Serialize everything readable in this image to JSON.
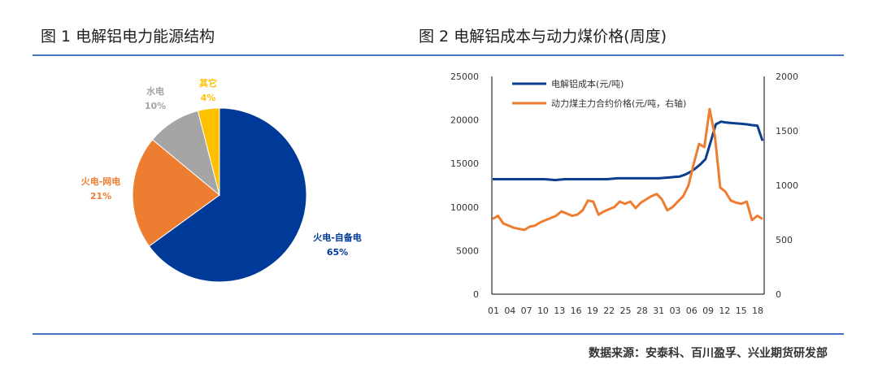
{
  "figure1_title": "图 1  电解铝电力能源结构",
  "figure2_title": "图 2  电解铝成本与动力煤价格(周度)",
  "source": "数据来源：安泰科、百川盈孚、兴业期货研发部",
  "chart_data": [
    {
      "type": "pie",
      "title": "",
      "slices": [
        {
          "label": "火电-自备电",
          "value": 65,
          "value_label": "65%",
          "color": "#003a99"
        },
        {
          "label": "火电-网电",
          "value": 21,
          "value_label": "21%",
          "color": "#ed7d31"
        },
        {
          "label": "水电",
          "value": 10,
          "value_label": "10%",
          "color": "#a5a5a5"
        },
        {
          "label": "其它",
          "value": 4,
          "value_label": "4%",
          "color": "#ffc000"
        }
      ]
    },
    {
      "type": "line",
      "title": "",
      "x_ticks": [
        "01",
        "04",
        "07",
        "10",
        "13",
        "16",
        "19",
        "22",
        "25",
        "28",
        "31",
        "03",
        "06",
        "09",
        "12",
        "15",
        "18"
      ],
      "y_left": {
        "ticks": [
          "0",
          "5000",
          "10000",
          "15000",
          "20000",
          "25000"
        ],
        "range": [
          0,
          25000
        ]
      },
      "y_right": {
        "ticks": [
          "0",
          "500",
          "1000",
          "1500",
          "2000"
        ],
        "range": [
          0,
          2000
        ]
      },
      "legend_position": "top-left",
      "series": [
        {
          "name": "电解铝成本(元/吨)",
          "axis": "left",
          "color": "#0b3d91",
          "values": [
            13200,
            13200,
            13200,
            13200,
            13200,
            13200,
            13200,
            13200,
            13200,
            13200,
            13200,
            13150,
            13100,
            13150,
            13200,
            13200,
            13200,
            13200,
            13200,
            13200,
            13200,
            13200,
            13200,
            13250,
            13300,
            13300,
            13300,
            13300,
            13300,
            13300,
            13300,
            13300,
            13300,
            13350,
            13400,
            13450,
            13500,
            13700,
            14000,
            14400,
            14900,
            15500,
            17500,
            19500,
            19800,
            19700,
            19650,
            19600,
            19550,
            19500,
            19400,
            19350,
            17600
          ]
        },
        {
          "name": "动力煤主力合约价格(元/吨，右轴)",
          "axis": "right",
          "color": "#ed7d31",
          "values": [
            690,
            720,
            650,
            630,
            610,
            600,
            590,
            620,
            630,
            660,
            680,
            700,
            720,
            760,
            740,
            720,
            730,
            770,
            860,
            850,
            730,
            760,
            780,
            800,
            850,
            830,
            850,
            790,
            840,
            870,
            900,
            920,
            870,
            770,
            800,
            850,
            900,
            1000,
            1200,
            1380,
            1350,
            1700,
            1450,
            980,
            940,
            860,
            840,
            830,
            850,
            680,
            720,
            690
          ]
        }
      ]
    }
  ]
}
